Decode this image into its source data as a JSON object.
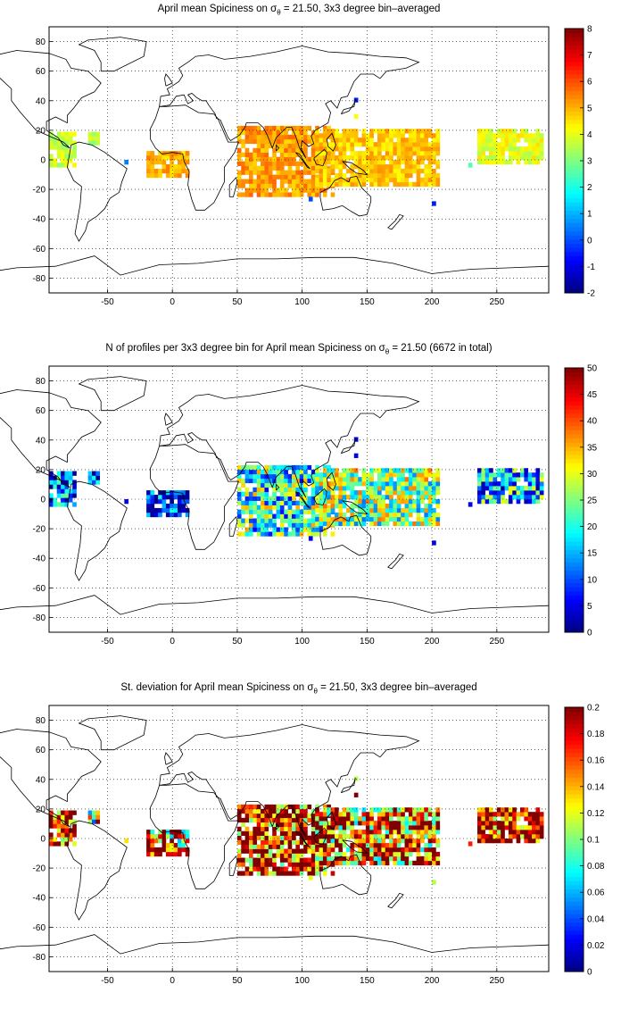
{
  "panels": [
    {
      "title_prefix": "April mean Spiciness on σ",
      "title_sub": "θ",
      "title_suffix": " = 21.50, 3x3 degree bin–averaged",
      "colorbar": {
        "min": -2,
        "max": 8,
        "ticks": [
          "8",
          "7",
          "6",
          "5",
          "4",
          "3",
          "2",
          "1",
          "0",
          "-1",
          "-2"
        ]
      }
    },
    {
      "title_prefix": "N of profiles per 3x3 degree bin for April mean Spiciness on σ",
      "title_sub": "θ",
      "title_suffix": " = 21.50 (6672 in total)",
      "colorbar": {
        "min": 0,
        "max": 50,
        "ticks": [
          "50",
          "45",
          "40",
          "35",
          "30",
          "25",
          "20",
          "15",
          "10",
          "5",
          "0"
        ]
      }
    },
    {
      "title_prefix": "St. deviation for April mean Spiciness on σ",
      "title_sub": "θ",
      "title_suffix": " = 21.50, 3x3 degree bin–averaged",
      "colorbar": {
        "min": 0,
        "max": 0.2,
        "ticks": [
          "0.2",
          "0.18",
          "0.16",
          "0.14",
          "0.12",
          "0.1",
          "0.08",
          "0.06",
          "0.04",
          "0.02",
          "0"
        ]
      }
    }
  ],
  "axes": {
    "xlim": [
      -95,
      290
    ],
    "ylim": [
      -90,
      90
    ],
    "xticks": [
      "-50",
      "0",
      "50",
      "100",
      "150",
      "200",
      "250"
    ],
    "yticks": [
      "80",
      "60",
      "40",
      "20",
      "0",
      "-20",
      "-40",
      "-60",
      "-80"
    ],
    "grid": "dotted"
  },
  "colormap": "jet",
  "data_regions": [
    {
      "name": "eastern-pacific",
      "lon": [
        -95,
        -75
      ],
      "lat": [
        -5,
        18
      ],
      "value": 0.58,
      "count": 0.3,
      "std": 0.9
    },
    {
      "name": "caribbean",
      "lon": [
        -65,
        -58
      ],
      "lat": [
        10,
        18
      ],
      "value": 0.55,
      "count": 0.15,
      "std": 0.5
    },
    {
      "name": "gulf-of-guinea",
      "lon": [
        -20,
        12
      ],
      "lat": [
        -12,
        4
      ],
      "value": 0.7,
      "count": 0.15,
      "std": 0.7
    },
    {
      "name": "indian-ocean",
      "lon": [
        50,
        125
      ],
      "lat": [
        -25,
        22
      ],
      "value": 0.72,
      "count": 0.45,
      "std": 0.85
    },
    {
      "name": "western-pacific",
      "lon": [
        110,
        205
      ],
      "lat": [
        -18,
        20
      ],
      "value": 0.68,
      "count": 0.5,
      "std": 0.75
    },
    {
      "name": "central-pacific",
      "lon": [
        235,
        285
      ],
      "lat": [
        -3,
        20
      ],
      "value": 0.6,
      "count": 0.35,
      "std": 0.9
    }
  ]
}
